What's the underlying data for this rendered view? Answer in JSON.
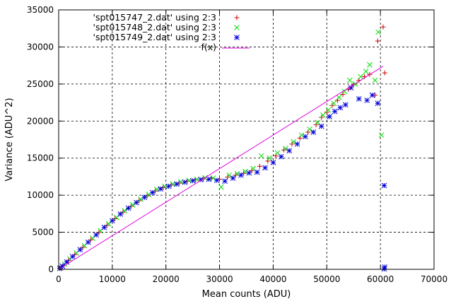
{
  "chart_data": {
    "type": "scatter",
    "xlabel": "Mean counts (ADU)",
    "ylabel": "Variance (ADU^2)",
    "xlim": [
      0,
      70000
    ],
    "ylim": [
      0,
      35000
    ],
    "xticks": [
      0,
      10000,
      20000,
      30000,
      40000,
      50000,
      60000,
      70000
    ],
    "xtick_labels": [
      "0",
      "10000",
      "20000",
      "30000",
      "40000",
      "50000",
      "60000",
      "70000"
    ],
    "yticks": [
      0,
      5000,
      10000,
      15000,
      20000,
      25000,
      30000,
      35000
    ],
    "ytick_labels": [
      "0",
      "5000",
      "10000",
      "15000",
      "20000",
      "25000",
      "30000",
      "35000"
    ],
    "grid": "dashed",
    "legend_position": "top-left",
    "series": [
      {
        "name": "'spt015747_2.dat' using 2:3",
        "marker": "plus",
        "color": "#cc0000",
        "points": [
          [
            300,
            180
          ],
          [
            900,
            560
          ],
          [
            1800,
            1180
          ],
          [
            3000,
            1990
          ],
          [
            4500,
            2960
          ],
          [
            6000,
            3980
          ],
          [
            7500,
            4960
          ],
          [
            9000,
            5920
          ],
          [
            10500,
            6820
          ],
          [
            12000,
            7710
          ],
          [
            13500,
            8490
          ],
          [
            15000,
            9260
          ],
          [
            16500,
            9900
          ],
          [
            18000,
            10550
          ],
          [
            19500,
            11020
          ],
          [
            21000,
            11350
          ],
          [
            22500,
            11620
          ],
          [
            24000,
            11880
          ],
          [
            25500,
            12050
          ],
          [
            27000,
            12200
          ],
          [
            28500,
            12300
          ],
          [
            30000,
            12150
          ],
          [
            31500,
            12450
          ],
          [
            33000,
            12700
          ],
          [
            34500,
            12950
          ],
          [
            36000,
            13300
          ],
          [
            37500,
            13900
          ],
          [
            39000,
            14600
          ],
          [
            40500,
            15300
          ],
          [
            42000,
            16100
          ],
          [
            43500,
            16900
          ],
          [
            45000,
            17700
          ],
          [
            46500,
            18500
          ],
          [
            48000,
            19500
          ],
          [
            49000,
            20500
          ],
          [
            50000,
            21200
          ],
          [
            51000,
            22100
          ],
          [
            52000,
            22800
          ],
          [
            53000,
            23600
          ],
          [
            54000,
            24300
          ],
          [
            55000,
            24900
          ],
          [
            56000,
            25500
          ],
          [
            57000,
            26000
          ],
          [
            58000,
            26300
          ],
          [
            59000,
            23500
          ],
          [
            59500,
            30800
          ],
          [
            60500,
            32700
          ],
          [
            60800,
            26500
          ]
        ]
      },
      {
        "name": "'spt015748_2.dat' using 2:3",
        "marker": "cross",
        "color": "#00dd00",
        "points": [
          [
            400,
            230
          ],
          [
            1100,
            700
          ],
          [
            2100,
            1400
          ],
          [
            3300,
            2200
          ],
          [
            4800,
            3180
          ],
          [
            6300,
            4200
          ],
          [
            7800,
            5200
          ],
          [
            9300,
            6150
          ],
          [
            10800,
            7000
          ],
          [
            12300,
            7900
          ],
          [
            13800,
            8700
          ],
          [
            15300,
            9450
          ],
          [
            16800,
            10100
          ],
          [
            18300,
            10800
          ],
          [
            19800,
            11200
          ],
          [
            21300,
            11500
          ],
          [
            22800,
            11800
          ],
          [
            24300,
            12000
          ],
          [
            25800,
            12150
          ],
          [
            27300,
            12350
          ],
          [
            28800,
            12300
          ],
          [
            30300,
            11100
          ],
          [
            31800,
            12700
          ],
          [
            33300,
            12900
          ],
          [
            34800,
            13200
          ],
          [
            36300,
            13600
          ],
          [
            37800,
            15300
          ],
          [
            39300,
            15000
          ],
          [
            40800,
            15700
          ],
          [
            42300,
            16300
          ],
          [
            43800,
            17200
          ],
          [
            45300,
            18100
          ],
          [
            46800,
            18900
          ],
          [
            48300,
            19800
          ],
          [
            49300,
            20800
          ],
          [
            50300,
            21500
          ],
          [
            51300,
            22400
          ],
          [
            52300,
            23200
          ],
          [
            53300,
            24000
          ],
          [
            54300,
            25500
          ],
          [
            55300,
            25000
          ],
          [
            56300,
            26000
          ],
          [
            57300,
            26700
          ],
          [
            58000,
            27600
          ],
          [
            59000,
            25500
          ],
          [
            59600,
            32000
          ],
          [
            60200,
            18100
          ]
        ]
      },
      {
        "name": "'spt015749_2.dat' using 2:3",
        "marker": "star",
        "color": "#0000dd",
        "points": [
          [
            200,
            120
          ],
          [
            700,
            430
          ],
          [
            1500,
            980
          ],
          [
            2600,
            1720
          ],
          [
            4000,
            2650
          ],
          [
            5500,
            3650
          ],
          [
            7000,
            4650
          ],
          [
            8500,
            5650
          ],
          [
            10000,
            6550
          ],
          [
            11500,
            7450
          ],
          [
            13000,
            8250
          ],
          [
            14500,
            9000
          ],
          [
            16000,
            9700
          ],
          [
            17500,
            10350
          ],
          [
            19000,
            10850
          ],
          [
            20500,
            11200
          ],
          [
            22000,
            11500
          ],
          [
            23500,
            11750
          ],
          [
            25000,
            11950
          ],
          [
            26500,
            12100
          ],
          [
            28000,
            12150
          ],
          [
            29500,
            12000
          ],
          [
            31000,
            11900
          ],
          [
            32500,
            12300
          ],
          [
            34000,
            12700
          ],
          [
            35500,
            13000
          ],
          [
            37000,
            13100
          ],
          [
            38500,
            13700
          ],
          [
            40000,
            14400
          ],
          [
            41500,
            15200
          ],
          [
            43000,
            16000
          ],
          [
            44500,
            16900
          ],
          [
            46000,
            17900
          ],
          [
            47500,
            18500
          ],
          [
            49000,
            19300
          ],
          [
            50500,
            20600
          ],
          [
            51500,
            21300
          ],
          [
            52500,
            21800
          ],
          [
            53500,
            22200
          ],
          [
            54500,
            24500
          ],
          [
            56000,
            23000
          ],
          [
            57500,
            22800
          ],
          [
            58500,
            23500
          ],
          [
            59500,
            22400
          ],
          [
            60700,
            11300
          ],
          [
            60800,
            300
          ],
          [
            60700,
            50
          ]
        ]
      },
      {
        "name": "f(x)",
        "type": "line",
        "color": "#dd00dd",
        "points": [
          [
            0,
            0
          ],
          [
            60500,
            27400
          ]
        ]
      }
    ]
  }
}
